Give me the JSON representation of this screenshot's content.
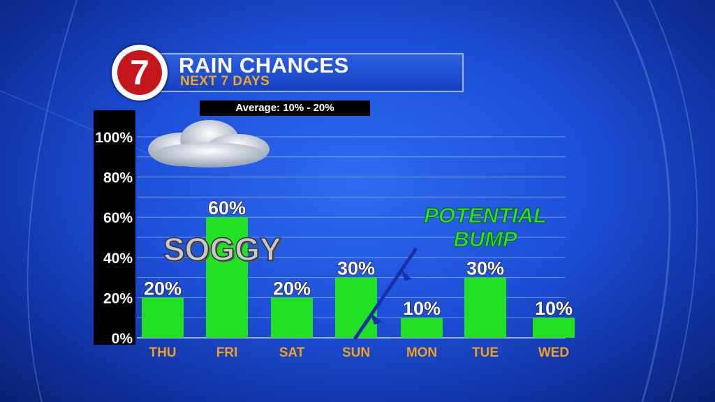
{
  "header": {
    "logo_text": "7",
    "title": "RAIN CHANCES",
    "subtitle": "NEXT 7 DAYS",
    "average_label": "Average: 10% - 20%"
  },
  "annotations": {
    "soggy": "SOGGY",
    "potential_line1": "POTENTIAL",
    "potential_line2": "BUMP"
  },
  "colors": {
    "bar": "#22e022",
    "day_label": "#f0a020",
    "title": "#ffffff",
    "subtitle": "#f5a623",
    "annotation": "#2ee02e"
  },
  "chart_data": {
    "type": "bar",
    "categories": [
      "THU",
      "FRI",
      "SAT",
      "SUN",
      "MON",
      "TUE",
      "WED"
    ],
    "values": [
      20,
      60,
      20,
      30,
      10,
      30,
      10
    ],
    "value_labels": [
      "20%",
      "60%",
      "20%",
      "30%",
      "10%",
      "30%",
      "10%"
    ],
    "title": "RAIN CHANCES",
    "subtitle": "NEXT 7 DAYS",
    "ylim": [
      0,
      100
    ],
    "yticks": [
      0,
      20,
      40,
      60,
      80,
      100
    ],
    "ytick_labels": [
      "0%",
      "20%",
      "40%",
      "60%",
      "80%",
      "100%"
    ],
    "grid": true,
    "legend": "none"
  }
}
